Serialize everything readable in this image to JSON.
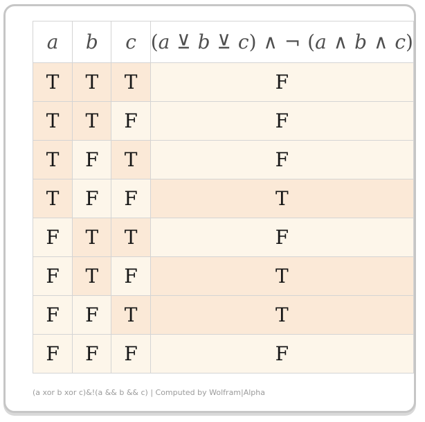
{
  "table": {
    "column_headers": [
      "a",
      "b",
      "c"
    ],
    "expression": "(a ⊻ b ⊻ c) ∧ ¬ (a ∧ b ∧ c)",
    "expression_segments": [
      {
        "t": "(",
        "i": false
      },
      {
        "t": "a",
        "i": true
      },
      {
        "t": " ⊻ ",
        "i": false
      },
      {
        "t": "b",
        "i": true
      },
      {
        "t": " ⊻ ",
        "i": false
      },
      {
        "t": "c",
        "i": true
      },
      {
        "t": ") ∧ ¬ (",
        "i": false
      },
      {
        "t": "a",
        "i": true
      },
      {
        "t": " ∧ ",
        "i": false
      },
      {
        "t": "b",
        "i": true
      },
      {
        "t": " ∧ ",
        "i": false
      },
      {
        "t": "c",
        "i": true
      },
      {
        "t": ")",
        "i": false
      }
    ],
    "true_label": "T",
    "false_label": "F",
    "rows": [
      {
        "a": "T",
        "b": "T",
        "c": "T",
        "result": "F"
      },
      {
        "a": "T",
        "b": "T",
        "c": "F",
        "result": "F"
      },
      {
        "a": "T",
        "b": "F",
        "c": "T",
        "result": "F"
      },
      {
        "a": "T",
        "b": "F",
        "c": "F",
        "result": "T"
      },
      {
        "a": "F",
        "b": "T",
        "c": "T",
        "result": "F"
      },
      {
        "a": "F",
        "b": "T",
        "c": "F",
        "result": "T"
      },
      {
        "a": "F",
        "b": "F",
        "c": "T",
        "result": "T"
      },
      {
        "a": "F",
        "b": "F",
        "c": "F",
        "result": "F"
      }
    ]
  },
  "footer": {
    "caption": "(a xor b xor c)&!(a && b && c) | Computed by Wolfram|Alpha"
  },
  "colors": {
    "true_cell_bg": "#fbe9d7",
    "false_cell_bg": "#fdf6ea",
    "grid_line": "#d4d4d4",
    "table_outer_border": "#c6c6c6",
    "card_border": "#c6c6c6",
    "card_shadow": "#d9d9d9",
    "header_text": "#4f4f4f",
    "cell_text": "#161616",
    "footer_text": "#9b9b9b"
  }
}
